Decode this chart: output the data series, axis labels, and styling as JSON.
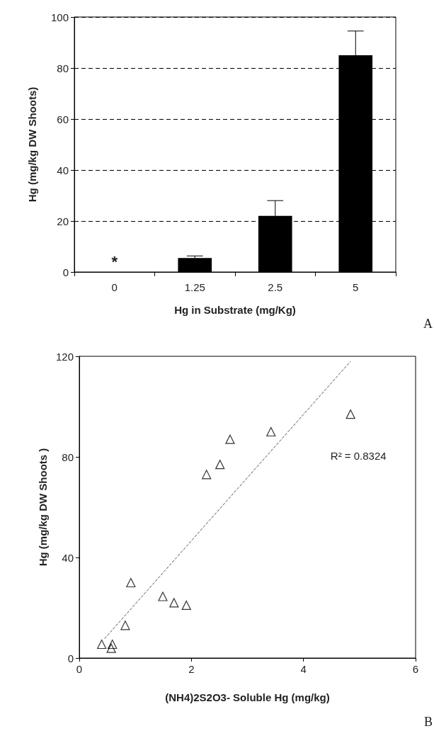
{
  "chart_data": [
    {
      "type": "bar",
      "xlabel": "Hg in Substrate (mg/Kg)",
      "ylabel": "Hg (mg/kg DW Shoots)",
      "categories": [
        "0",
        "1.25",
        "2.5",
        "5"
      ],
      "values": [
        null,
        5.5,
        22,
        85
      ],
      "errors": [
        null,
        0.8,
        6,
        9.5
      ],
      "color": "#000000",
      "ylim": [
        0,
        100
      ],
      "yticks": [
        0,
        20,
        40,
        60,
        80,
        100
      ],
      "grid": "y",
      "annotations": [
        "*",
        "A"
      ]
    },
    {
      "type": "scatter",
      "xlabel": "(NH4)2S2O3- Soluble Hg (mg/kg)",
      "ylabel": "Hg (mg/kg DW Shoots )",
      "series": [
        {
          "color": "#000000",
          "marker": "triangle",
          "x": [
            0.4,
            0.59,
            0.57,
            0.82,
            0.92,
            1.49,
            1.69,
            1.91,
            2.27,
            2.51,
            2.69,
            3.42,
            4.84
          ],
          "values": [
            5.5,
            5.5,
            3.9,
            13,
            30,
            24.5,
            22,
            21,
            73,
            77,
            87,
            90,
            97
          ]
        },
        {
          "type": "line",
          "color": "#555555",
          "line_style": "dashed",
          "marker": "none",
          "x": [
            0.45,
            4.84
          ],
          "values": [
            7.7,
            118
          ]
        }
      ],
      "xlim": [
        0,
        6
      ],
      "xticks": [
        0,
        2,
        4,
        6
      ],
      "ylim": [
        0,
        120
      ],
      "yticks": [
        0,
        40,
        80,
        120
      ],
      "grid": false,
      "annotations": [
        "R² = 0.8324",
        "B"
      ]
    }
  ]
}
